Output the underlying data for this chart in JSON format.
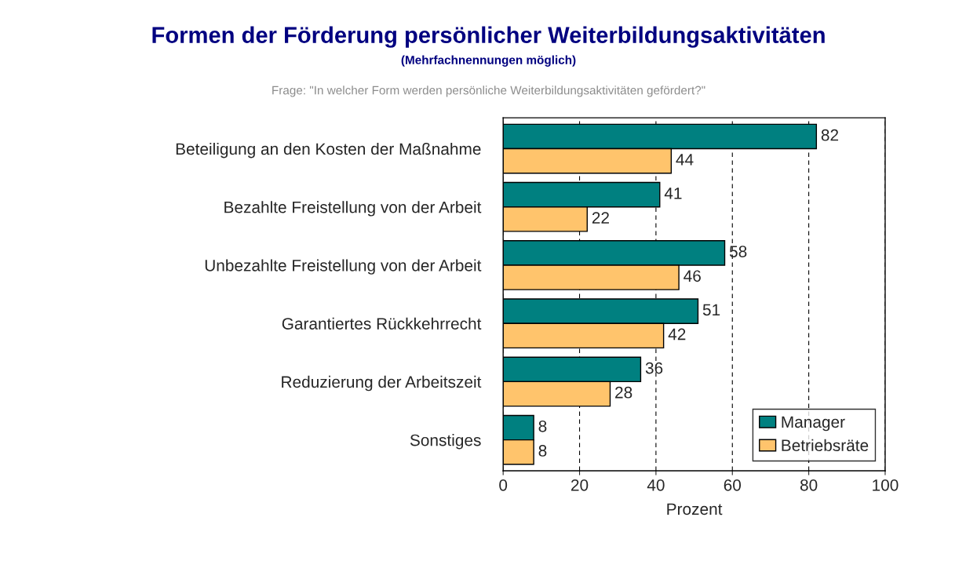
{
  "chart_data": {
    "type": "bar",
    "orientation": "horizontal",
    "title": "Formen der Förderung persönlicher Weiterbildungsaktivitäten",
    "subtitle": "(Mehrfachnennungen möglich)",
    "annotations": [
      "Frage: \"In welcher Form werden persönliche Weiterbildungsaktivitäten gefördert?\""
    ],
    "categories": [
      "Beteiligung an den Kosten der Maßnahme",
      "Bezahlte Freistellung von der Arbeit",
      "Unbezahlte Freistellung von der Arbeit",
      "Garantiertes Rückkehrrecht",
      "Reduzierung der Arbeitszeit",
      "Sonstiges"
    ],
    "series": [
      {
        "name": "Manager",
        "color": "#008080",
        "values": [
          82,
          41,
          58,
          51,
          36,
          8
        ]
      },
      {
        "name": "Betriebsräte",
        "color": "#ffc46c",
        "values": [
          44,
          22,
          46,
          42,
          28,
          8
        ]
      }
    ],
    "xlabel": "Prozent",
    "xlim": [
      0,
      100
    ],
    "xticks": [
      0,
      20,
      40,
      60,
      80,
      100
    ],
    "grid": "x",
    "legend": "bottom right",
    "data_labels": true
  }
}
